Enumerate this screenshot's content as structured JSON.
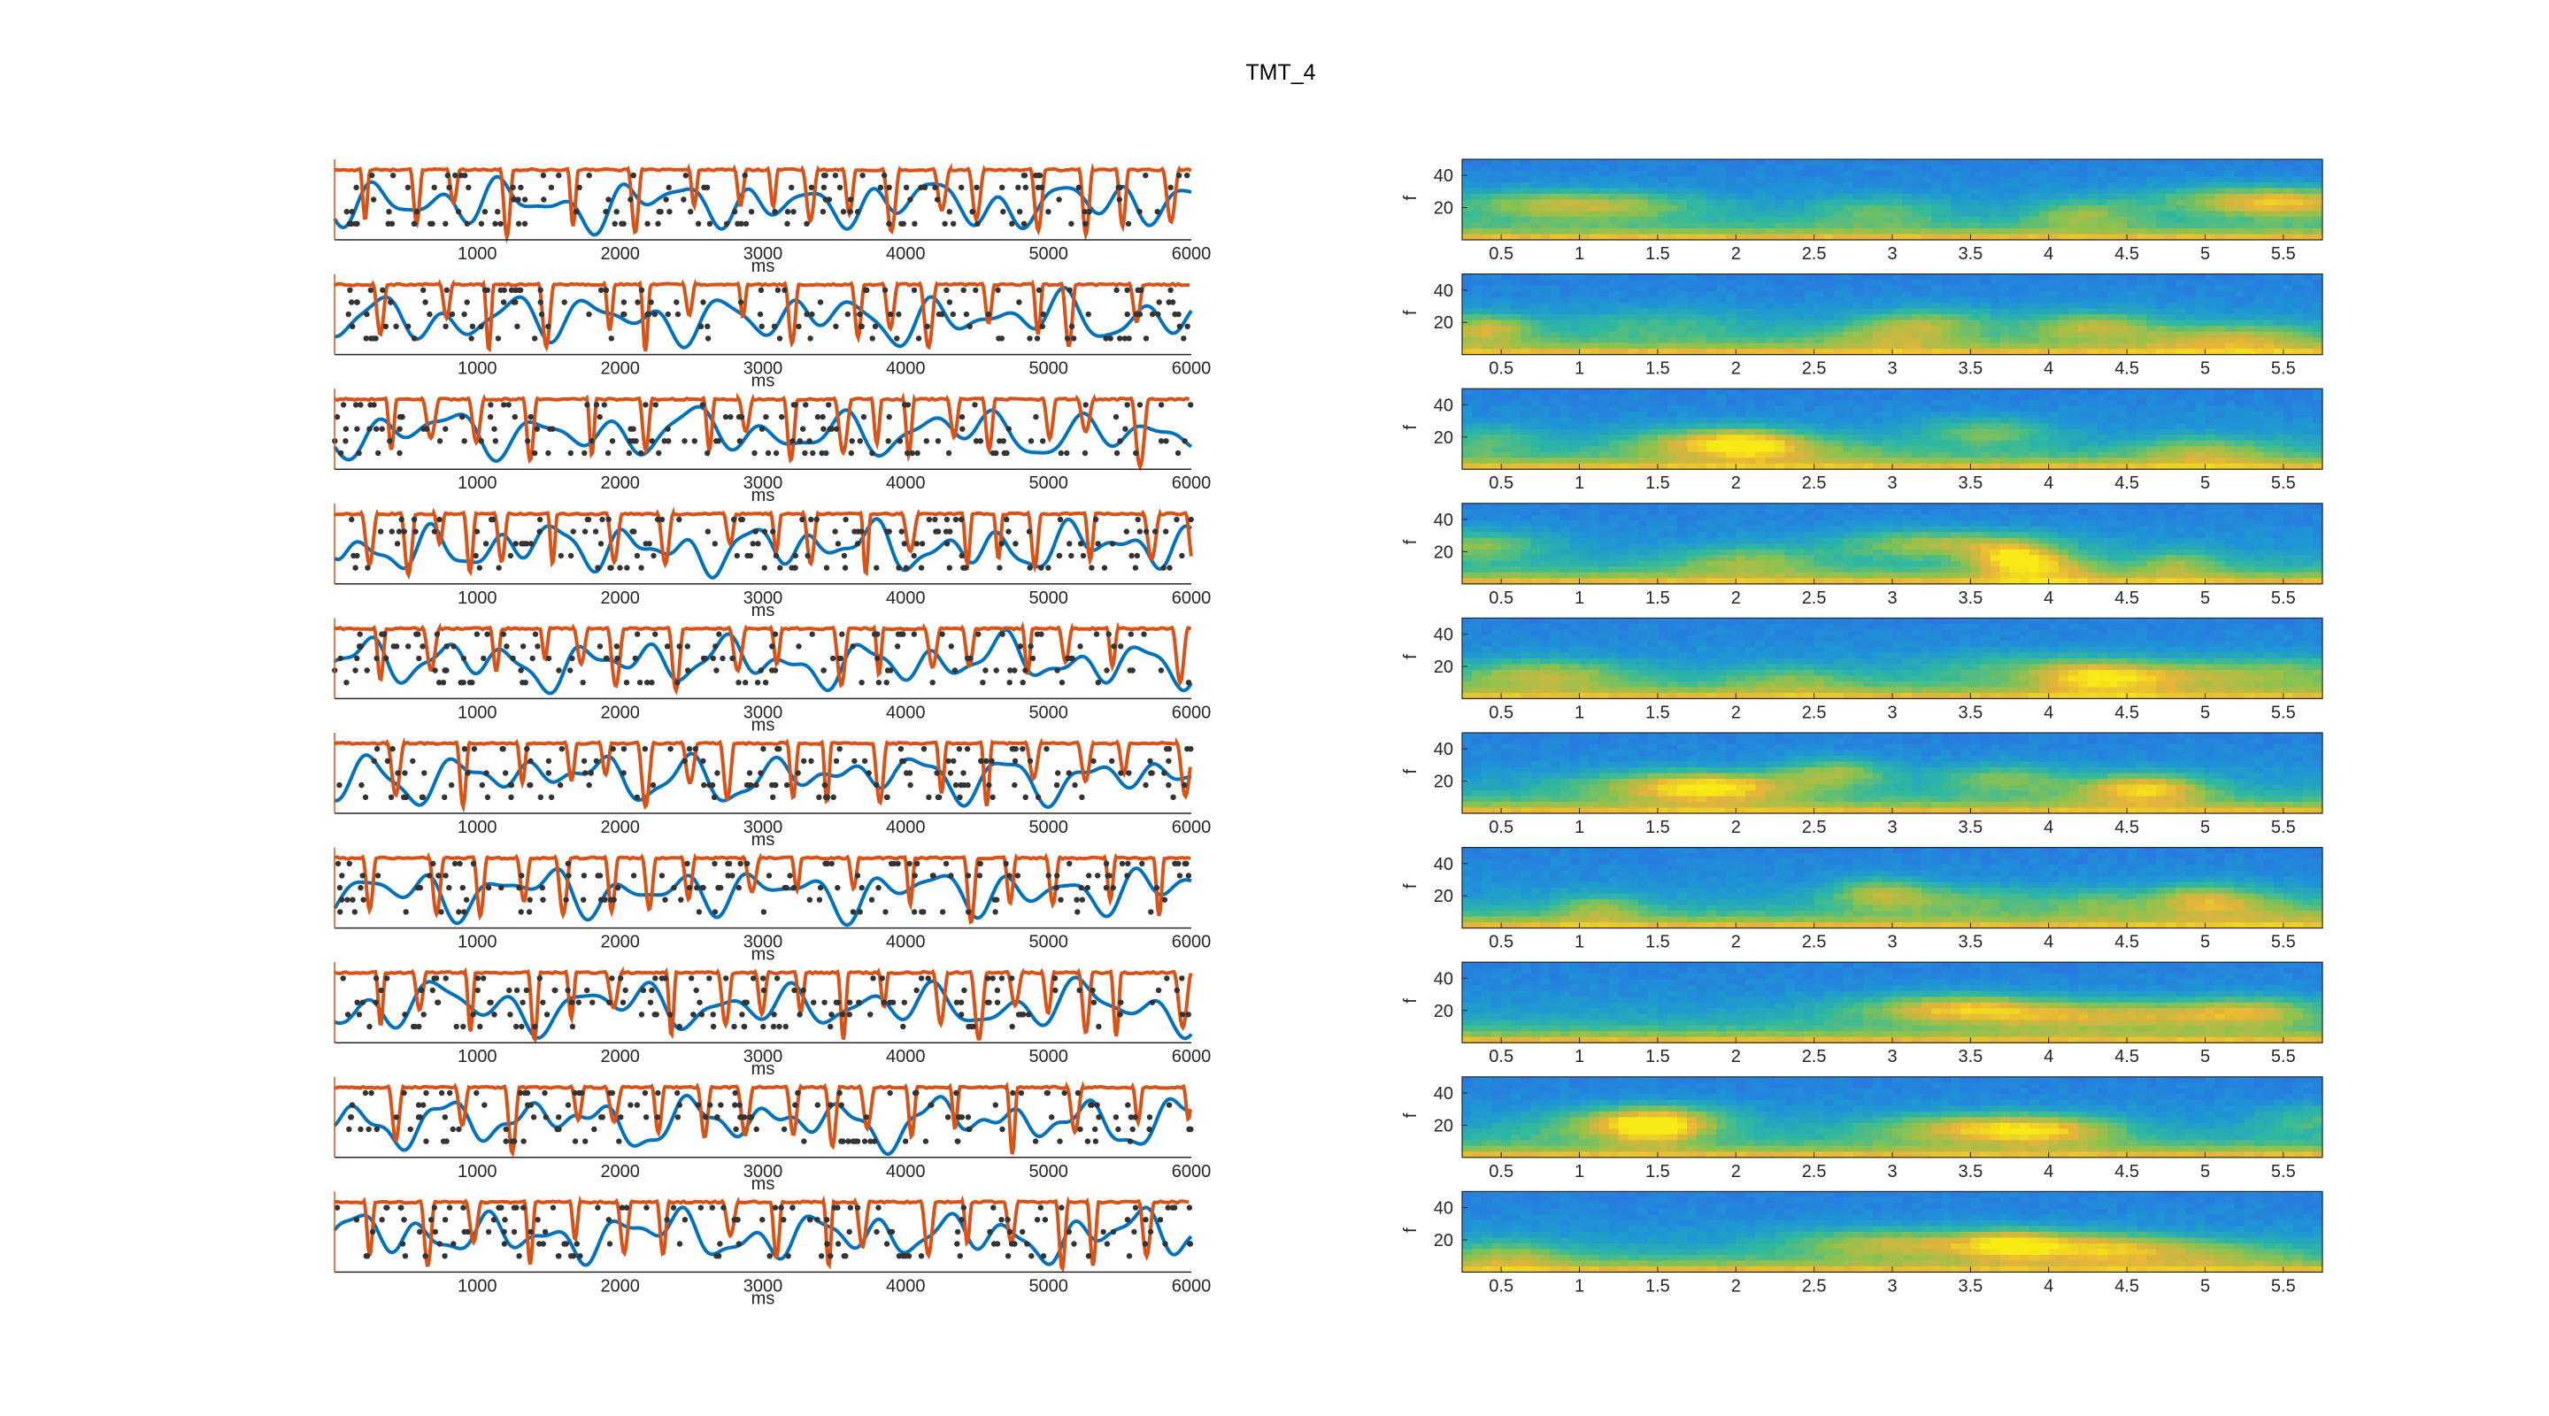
{
  "title": "TMT_4",
  "chart_data": {
    "type": "composite",
    "left_panels": {
      "type": "line",
      "count": 10,
      "xlabel": "ms",
      "xlim": [
        0,
        6000
      ],
      "xticks": [
        1000,
        2000,
        3000,
        4000,
        5000,
        6000
      ],
      "series": [
        {
          "color": "#0072BD"
        },
        {
          "color": "#D95319"
        },
        {
          "color": "#333333"
        }
      ]
    },
    "right_panels": {
      "type": "heatmap",
      "count": 10,
      "ylabel": "f",
      "yticks": [
        20,
        40
      ],
      "ylim": [
        0,
        50
      ],
      "xlim": [
        0.25,
        5.75
      ],
      "xticks": [
        0.5,
        1,
        1.5,
        2,
        2.5,
        3,
        3.5,
        4,
        4.5,
        5,
        5.5
      ],
      "colormap": [
        "#3E26A8",
        "#2F63E8",
        "#1F96D6",
        "#2FB8A0",
        "#8CC24E",
        "#E6B33A",
        "#F8EA14"
      ]
    }
  }
}
